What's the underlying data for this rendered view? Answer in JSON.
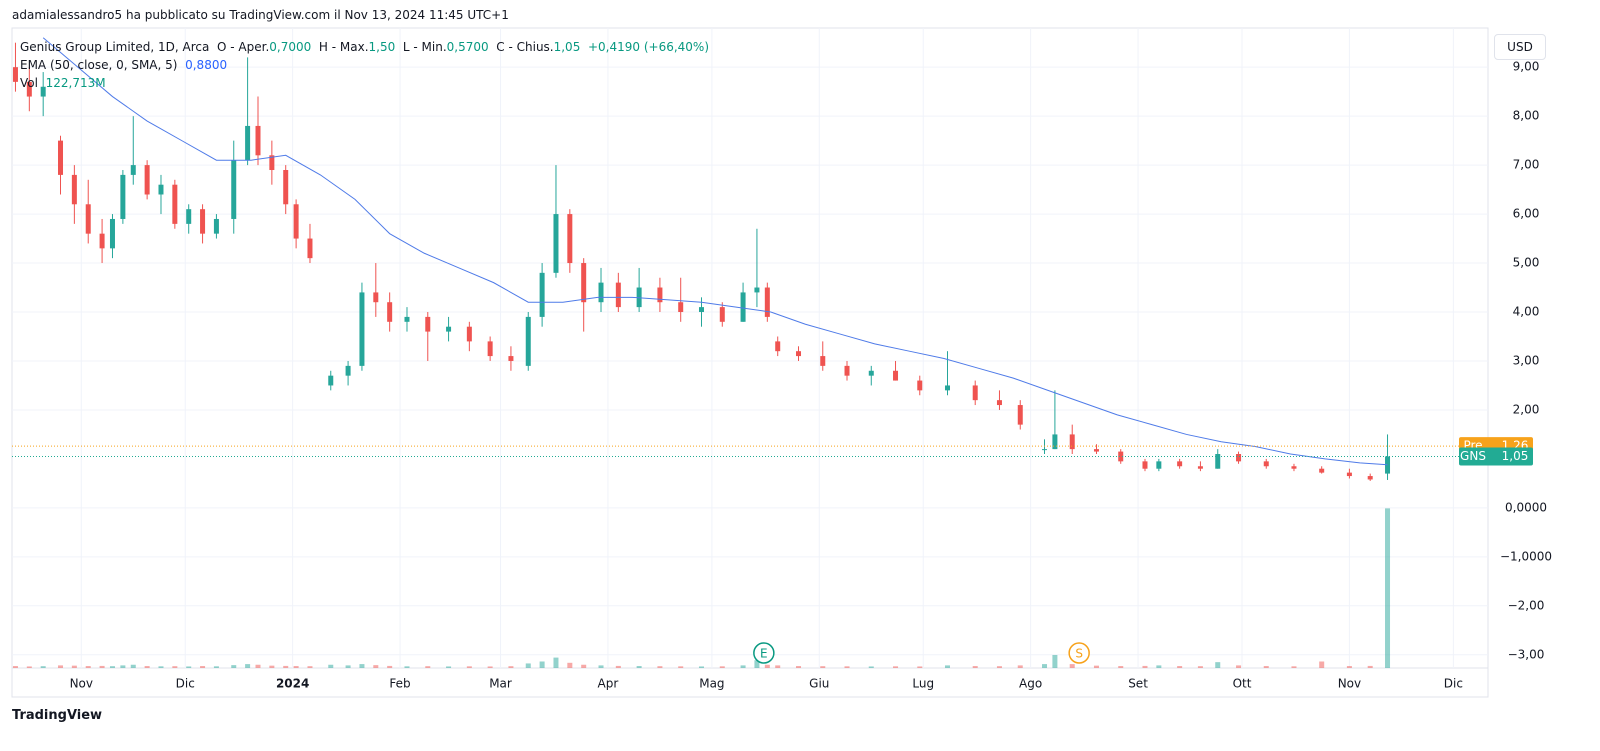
{
  "header": {
    "publisher": "adamialessandro5 ha pubblicato su TradingView.com il Nov 13, 2024 11:45 UTC+1"
  },
  "legend": {
    "symbol": "Genius Group Limited, 1D, Arca",
    "open_label": "O - Aper.",
    "open": "0,7000",
    "high_label": "H - Max.",
    "high": "1,50",
    "low_label": "L - Min.",
    "low": "0,5700",
    "close_label": "C - Chius.",
    "close": "1,05",
    "change": "+0,4190 (+66,40%)",
    "ema_label": "EMA (50, close, 0, SMA, 5)",
    "ema": "0,8800",
    "vol_label": "Vol",
    "vol": "122,713M"
  },
  "currency": "USD",
  "brand": "TradingView",
  "chart_data": {
    "type": "candlestick",
    "up_color": "#26a69a",
    "down_color": "#ef5350",
    "x": [
      12,
      16,
      20,
      25,
      29,
      33,
      37,
      40,
      43,
      46,
      50,
      54,
      58,
      62,
      66,
      70,
      75,
      79,
      82,
      86,
      90,
      93,
      97,
      103,
      108,
      112,
      116,
      120,
      125,
      131,
      137,
      143,
      149,
      155,
      160,
      164,
      168,
      172,
      176,
      181,
      186,
      192,
      198,
      204,
      210,
      216,
      222,
      226,
      229,
      232,
      238,
      245,
      252,
      259,
      266,
      273,
      281,
      289,
      296,
      302,
      309,
      312,
      317,
      324,
      331,
      338,
      342,
      348,
      354,
      359,
      365,
      373,
      381,
      389,
      397,
      403,
      408
    ],
    "open": [
      9.0,
      8.7,
      8.4,
      7.5,
      6.8,
      6.2,
      5.6,
      5.3,
      5.9,
      6.8,
      7.0,
      6.4,
      6.6,
      5.8,
      6.1,
      5.6,
      5.9,
      7.1,
      7.8,
      7.2,
      6.9,
      6.2,
      5.5,
      2.5,
      2.7,
      2.9,
      4.4,
      4.2,
      3.8,
      3.9,
      3.6,
      3.7,
      3.4,
      3.1,
      2.9,
      3.9,
      4.8,
      6.0,
      5.0,
      4.2,
      4.6,
      4.1,
      4.5,
      4.2,
      4.0,
      4.1,
      3.8,
      4.4,
      4.5,
      3.4,
      3.2,
      3.1,
      2.9,
      2.7,
      2.8,
      2.6,
      2.4,
      2.5,
      2.2,
      2.1,
      1.2,
      1.2,
      1.5,
      1.2,
      1.15,
      0.95,
      0.8,
      0.95,
      0.85,
      0.8,
      1.1,
      0.95,
      0.85,
      0.8,
      0.72,
      0.65,
      0.7
    ],
    "high": [
      9.5,
      9.0,
      8.9,
      7.6,
      7.0,
      6.7,
      5.9,
      6.0,
      6.9,
      8.0,
      7.1,
      6.8,
      6.7,
      6.2,
      6.2,
      6.0,
      7.5,
      9.2,
      8.4,
      7.5,
      7.0,
      6.3,
      5.8,
      2.8,
      3.0,
      4.6,
      5.0,
      4.4,
      4.1,
      4.0,
      3.9,
      3.8,
      3.5,
      3.3,
      4.0,
      5.0,
      7.0,
      6.1,
      5.1,
      4.9,
      4.8,
      4.9,
      4.7,
      4.7,
      4.3,
      4.2,
      4.6,
      5.7,
      4.6,
      3.5,
      3.3,
      3.4,
      3.0,
      2.9,
      3.0,
      2.7,
      3.2,
      2.6,
      2.4,
      2.2,
      1.4,
      2.4,
      1.7,
      1.3,
      1.2,
      1.0,
      1.0,
      1.0,
      0.95,
      1.2,
      1.15,
      1.0,
      0.9,
      0.85,
      0.8,
      0.7,
      1.5
    ],
    "low": [
      8.5,
      8.1,
      8.0,
      6.4,
      5.8,
      5.4,
      5.0,
      5.1,
      5.8,
      6.6,
      6.3,
      6.0,
      5.7,
      5.6,
      5.4,
      5.5,
      5.6,
      7.0,
      7.0,
      6.6,
      6.0,
      5.3,
      5.0,
      2.4,
      2.5,
      2.8,
      3.9,
      3.6,
      3.6,
      3.0,
      3.4,
      3.2,
      3.0,
      2.8,
      2.8,
      3.7,
      4.7,
      4.8,
      3.6,
      4.0,
      4.0,
      4.0,
      4.0,
      3.8,
      3.7,
      3.7,
      3.8,
      4.1,
      3.8,
      3.1,
      3.0,
      2.8,
      2.6,
      2.5,
      2.6,
      2.3,
      2.3,
      2.1,
      2.0,
      1.6,
      1.1,
      1.2,
      1.1,
      1.1,
      0.9,
      0.75,
      0.75,
      0.8,
      0.75,
      0.8,
      0.9,
      0.8,
      0.75,
      0.7,
      0.6,
      0.55,
      0.57
    ],
    "close": [
      8.7,
      8.4,
      8.6,
      6.8,
      6.2,
      5.6,
      5.3,
      5.9,
      6.8,
      7.0,
      6.4,
      6.6,
      5.8,
      6.1,
      5.6,
      5.9,
      7.1,
      7.8,
      7.2,
      6.9,
      6.2,
      5.5,
      5.1,
      2.7,
      2.9,
      4.4,
      4.2,
      3.8,
      3.9,
      3.6,
      3.7,
      3.4,
      3.1,
      3.0,
      3.9,
      4.8,
      6.0,
      5.0,
      4.2,
      4.6,
      4.1,
      4.5,
      4.2,
      4.0,
      4.1,
      3.8,
      4.4,
      4.5,
      3.9,
      3.2,
      3.1,
      2.9,
      2.7,
      2.8,
      2.6,
      2.4,
      2.5,
      2.2,
      2.1,
      1.7,
      1.2,
      1.5,
      1.2,
      1.15,
      0.95,
      0.8,
      0.95,
      0.85,
      0.8,
      1.1,
      0.95,
      0.85,
      0.8,
      0.72,
      0.65,
      0.58,
      1.05
    ],
    "volume": [
      1.5,
      1.2,
      1.4,
      2.0,
      1.8,
      1.5,
      1.6,
      1.4,
      2.0,
      2.5,
      1.5,
      1.3,
      1.4,
      1.2,
      1.5,
      1.3,
      2.2,
      3.0,
      2.5,
      1.8,
      1.6,
      1.5,
      1.4,
      2.5,
      2.0,
      3.0,
      2.2,
      1.6,
      1.3,
      1.4,
      1.2,
      1.3,
      1.2,
      1.4,
      3.5,
      5.0,
      8.0,
      4.0,
      2.5,
      2.0,
      1.6,
      1.5,
      1.4,
      1.3,
      1.2,
      1.3,
      2.0,
      6.0,
      2.5,
      2.0,
      1.5,
      1.4,
      1.3,
      1.2,
      1.3,
      1.2,
      2.0,
      1.5,
      1.4,
      2.0,
      3.0,
      10.0,
      3.0,
      1.8,
      1.5,
      1.6,
      2.0,
      1.5,
      1.4,
      4.5,
      2.0,
      1.5,
      1.3,
      5.0,
      1.5,
      1.6,
      122.713
    ],
    "volume_lim": [
      0,
      123
    ],
    "ema": {
      "color": "#4f7be8",
      "x": [
        20,
        30,
        40,
        50,
        60,
        70,
        80,
        90,
        100,
        110,
        120,
        130,
        140,
        150,
        160,
        170,
        180,
        190,
        200,
        210,
        220,
        230,
        240,
        250,
        260,
        270,
        280,
        290,
        300,
        310,
        320,
        330,
        340,
        350,
        360,
        370,
        380,
        390,
        400,
        408
      ],
      "values": [
        9.6,
        9.0,
        8.4,
        7.9,
        7.5,
        7.1,
        7.1,
        7.2,
        6.8,
        6.3,
        5.6,
        5.2,
        4.9,
        4.6,
        4.2,
        4.2,
        4.3,
        4.3,
        4.25,
        4.2,
        4.1,
        4.0,
        3.75,
        3.55,
        3.35,
        3.2,
        3.05,
        2.85,
        2.65,
        2.4,
        2.15,
        1.9,
        1.7,
        1.5,
        1.35,
        1.25,
        1.1,
        1.0,
        0.92,
        0.88
      ]
    },
    "price_lines": [
      {
        "label": "Pre",
        "value": 1.26,
        "value_label": "1,26",
        "color": "#f7a21b"
      },
      {
        "label": "GNS",
        "value": 1.05,
        "value_label": "1,05",
        "color": "#22ab94"
      }
    ],
    "events": [
      {
        "label": "E",
        "x": 228,
        "color": "#089981"
      },
      {
        "label": "S",
        "x": 319,
        "color": "#f7a21b"
      }
    ],
    "xlim": [
      11,
      437
    ],
    "xticks": [
      {
        "value": 31,
        "label": "Nov"
      },
      {
        "value": 61,
        "label": "Dic"
      },
      {
        "value": 92,
        "label": "2024"
      },
      {
        "value": 123,
        "label": "Feb"
      },
      {
        "value": 152,
        "label": "Mar"
      },
      {
        "value": 183,
        "label": "Apr"
      },
      {
        "value": 213,
        "label": "Mag"
      },
      {
        "value": 244,
        "label": "Giu"
      },
      {
        "value": 274,
        "label": "Lug"
      },
      {
        "value": 305,
        "label": "Ago"
      },
      {
        "value": 336,
        "label": "Set"
      },
      {
        "value": 366,
        "label": "Ott"
      },
      {
        "value": 397,
        "label": "Nov"
      },
      {
        "value": 427,
        "label": "Dic"
      }
    ],
    "ylim": [
      -3.27,
      9.8
    ],
    "yticks": [
      {
        "value": 9,
        "label": "9,00"
      },
      {
        "value": 8,
        "label": "8,00"
      },
      {
        "value": 7,
        "label": "7,00"
      },
      {
        "value": 6,
        "label": "6,00"
      },
      {
        "value": 5,
        "label": "5,00"
      },
      {
        "value": 4,
        "label": "4,00"
      },
      {
        "value": 3,
        "label": "3,00"
      },
      {
        "value": 2,
        "label": "2,00"
      },
      {
        "value": 0,
        "label": "0,0000"
      },
      {
        "value": -1,
        "label": "−1,0000"
      },
      {
        "value": -2,
        "label": "−2,00"
      },
      {
        "value": -3,
        "label": "−3,00"
      }
    ],
    "grid": true
  }
}
